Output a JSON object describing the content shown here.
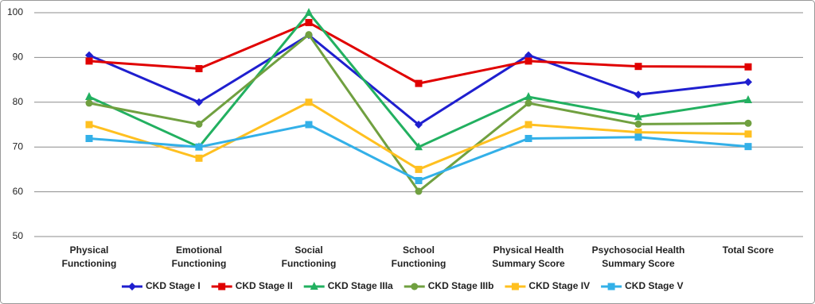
{
  "chart_data": {
    "type": "line",
    "categories": [
      [
        "Physical",
        "Functioning"
      ],
      [
        "Emotional",
        "Functioning"
      ],
      [
        "Social",
        "Functioning"
      ],
      [
        "School",
        "Functioning"
      ],
      [
        "Physical Health",
        "Summary Score"
      ],
      [
        "Psychosocial Health",
        "Summary Score"
      ],
      [
        "Total Score"
      ]
    ],
    "series": [
      {
        "name": "CKD Stage I",
        "color": "#1f1fcf",
        "marker": "diamond",
        "values": [
          90.5,
          80,
          95,
          75,
          90.5,
          81.7,
          84.5
        ]
      },
      {
        "name": "CKD Stage II",
        "color": "#e00000",
        "marker": "square",
        "values": [
          89.2,
          87.5,
          97.8,
          84.2,
          89.2,
          88,
          87.9
        ]
      },
      {
        "name": "CKD Stage IIIa",
        "color": "#22b060",
        "marker": "triangle",
        "values": [
          81.2,
          70,
          100,
          70,
          81.2,
          76.7,
          80.5
        ]
      },
      {
        "name": "CKD Stage IIIb",
        "color": "#70a040",
        "marker": "circle",
        "values": [
          79.8,
          75.1,
          95.1,
          60.1,
          79.8,
          75.1,
          75.3
        ]
      },
      {
        "name": "CKD Stage IV",
        "color": "#ffc020",
        "marker": "square",
        "values": [
          75,
          67.5,
          80,
          65,
          75,
          73.3,
          72.9
        ]
      },
      {
        "name": "CKD Stage V",
        "color": "#33b0e8",
        "marker": "square",
        "values": [
          71.9,
          70,
          75,
          62.5,
          71.9,
          72.2,
          70.1
        ]
      }
    ],
    "ylim": [
      50,
      100
    ],
    "yticks": [
      50,
      60,
      70,
      80,
      90,
      100
    ],
    "grid": true,
    "legend": "bottom"
  }
}
